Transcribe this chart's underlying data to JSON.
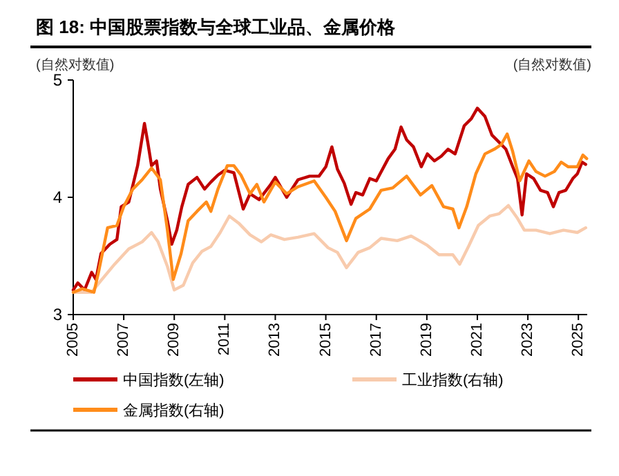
{
  "chart_data": {
    "type": "line",
    "title": "图 18: 中国股票指数与全球工业品、金属价格",
    "ylabel": "(自然对数值)",
    "y2label": "(自然对数值)",
    "xlim": [
      2005,
      2025.35
    ],
    "xticks": [
      2005,
      2007,
      2009,
      2011,
      2013,
      2015,
      2017,
      2019,
      2021,
      2023,
      2025
    ],
    "ylim": [
      3,
      5
    ],
    "yticks": [
      3,
      4,
      5
    ],
    "legend": "bottom",
    "series": [
      {
        "name": "中国指数(左轴)",
        "color": "#c00000",
        "x": [
          2005,
          2005.18,
          2005.45,
          2005.73,
          2005.9,
          2006.1,
          2006.45,
          2006.73,
          2006.9,
          2007.2,
          2007.55,
          2007.82,
          2007.95,
          2008.1,
          2008.3,
          2008.45,
          2008.73,
          2008.9,
          2009.1,
          2009.3,
          2009.55,
          2009.9,
          2010.2,
          2010.45,
          2010.73,
          2011,
          2011.36,
          2011.73,
          2012,
          2012.36,
          2012.82,
          2013,
          2013.45,
          2013.9,
          2014.36,
          2014.73,
          2015,
          2015.24,
          2015.46,
          2015.73,
          2016,
          2016.19,
          2016.46,
          2016.74,
          2017,
          2017.47,
          2017.74,
          2017.98,
          2018.2,
          2018.47,
          2018.78,
          2019.02,
          2019.3,
          2019.57,
          2019.84,
          2020.12,
          2020.48,
          2020.76,
          2021,
          2021.3,
          2021.58,
          2021.86,
          2022.13,
          2022.4,
          2022.59,
          2022.77,
          2022.95,
          2023.23,
          2023.5,
          2023.78,
          2024.01,
          2024.23,
          2024.5,
          2024.78,
          2024.96,
          2025.15,
          2025.29
        ],
        "values": [
          3.21,
          3.27,
          3.21,
          3.36,
          3.3,
          3.52,
          3.6,
          3.64,
          3.92,
          3.96,
          4.27,
          4.63,
          4.47,
          4.27,
          4.31,
          4.07,
          3.8,
          3.6,
          3.72,
          3.92,
          4.11,
          4.17,
          4.07,
          4.13,
          4.19,
          4.23,
          4.21,
          3.9,
          4.03,
          3.98,
          4.11,
          4.17,
          4.0,
          4.15,
          4.18,
          4.18,
          4.26,
          4.43,
          4.24,
          4.12,
          3.94,
          4.04,
          4.02,
          4.16,
          4.14,
          4.33,
          4.41,
          4.6,
          4.49,
          4.43,
          4.26,
          4.37,
          4.31,
          4.35,
          4.41,
          4.37,
          4.61,
          4.67,
          4.76,
          4.69,
          4.53,
          4.47,
          4.41,
          4.26,
          4.16,
          3.85,
          4.2,
          4.16,
          4.06,
          4.04,
          3.92,
          4.04,
          4.06,
          4.16,
          4.2,
          4.3,
          4.28
        ]
      },
      {
        "name": "工业指数(右轴)",
        "color": "#f8cbad",
        "x": [
          2005,
          2005.73,
          2006.1,
          2006.64,
          2007.2,
          2007.73,
          2008.1,
          2008.36,
          2008.73,
          2009,
          2009.36,
          2009.73,
          2010.1,
          2010.45,
          2010.82,
          2011.18,
          2011.55,
          2012,
          2012.45,
          2012.82,
          2013.36,
          2013.9,
          2014.54,
          2015.09,
          2015.46,
          2015.82,
          2016.28,
          2016.74,
          2017.19,
          2017.83,
          2018.38,
          2019.02,
          2019.48,
          2020.03,
          2020.3,
          2020.67,
          2021.04,
          2021.49,
          2021.86,
          2022.23,
          2022.59,
          2022.86,
          2023.32,
          2023.87,
          2024.41,
          2024.96,
          2025.29
        ],
        "values": [
          3.19,
          3.19,
          3.29,
          3.43,
          3.56,
          3.62,
          3.7,
          3.62,
          3.41,
          3.21,
          3.25,
          3.44,
          3.54,
          3.58,
          3.7,
          3.84,
          3.78,
          3.68,
          3.62,
          3.68,
          3.64,
          3.66,
          3.69,
          3.57,
          3.53,
          3.4,
          3.53,
          3.57,
          3.65,
          3.63,
          3.67,
          3.59,
          3.51,
          3.51,
          3.43,
          3.59,
          3.76,
          3.84,
          3.86,
          3.93,
          3.82,
          3.72,
          3.72,
          3.69,
          3.72,
          3.7,
          3.74
        ]
      },
      {
        "name": "金属指数(右轴)",
        "color": "#ff8c1a",
        "x": [
          2005,
          2005.36,
          2005.82,
          2006,
          2006.36,
          2006.73,
          2007,
          2007.36,
          2007.73,
          2008.1,
          2008.45,
          2008.73,
          2008.96,
          2009.27,
          2009.55,
          2009.9,
          2010.27,
          2010.45,
          2010.73,
          2011.1,
          2011.36,
          2011.64,
          2012,
          2012.27,
          2012.55,
          2013,
          2013.45,
          2013.9,
          2014.54,
          2015,
          2015.37,
          2015.82,
          2016.19,
          2016.74,
          2017.19,
          2017.65,
          2018.2,
          2018.75,
          2019.2,
          2019.66,
          2020.03,
          2020.27,
          2020.58,
          2020.94,
          2021.3,
          2021.67,
          2021.95,
          2022.18,
          2022.4,
          2022.68,
          2023.04,
          2023.32,
          2023.68,
          2024.05,
          2024.32,
          2024.6,
          2024.96,
          2025.18,
          2025.33
        ],
        "values": [
          3.19,
          3.22,
          3.19,
          3.36,
          3.74,
          3.76,
          3.92,
          4.07,
          4.15,
          4.25,
          4.15,
          3.72,
          3.3,
          3.52,
          3.8,
          3.88,
          3.96,
          3.88,
          4.07,
          4.27,
          4.27,
          4.19,
          4.03,
          4.11,
          3.96,
          4.13,
          4.03,
          4.09,
          4.14,
          4.0,
          3.88,
          3.63,
          3.82,
          3.9,
          4.06,
          4.08,
          4.18,
          4.02,
          4.1,
          3.92,
          3.9,
          3.74,
          3.92,
          4.2,
          4.37,
          4.41,
          4.45,
          4.54,
          4.39,
          4.14,
          4.31,
          4.22,
          4.18,
          4.22,
          4.3,
          4.26,
          4.26,
          4.36,
          4.33
        ]
      }
    ]
  }
}
